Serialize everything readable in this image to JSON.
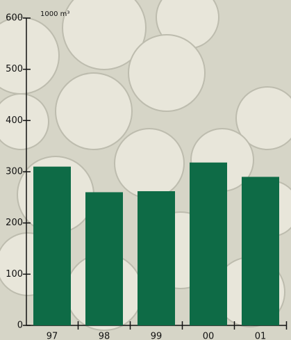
{
  "chart_data": {
    "type": "bar",
    "unit_label": "1000 m³",
    "categories": [
      "97",
      "98",
      "99",
      "00",
      "01"
    ],
    "values": [
      310,
      260,
      262,
      318,
      290
    ],
    "color": "#0e6b46",
    "ylim": [
      0,
      600
    ],
    "yticks": [
      0,
      100,
      200,
      300,
      400,
      500,
      600
    ]
  }
}
